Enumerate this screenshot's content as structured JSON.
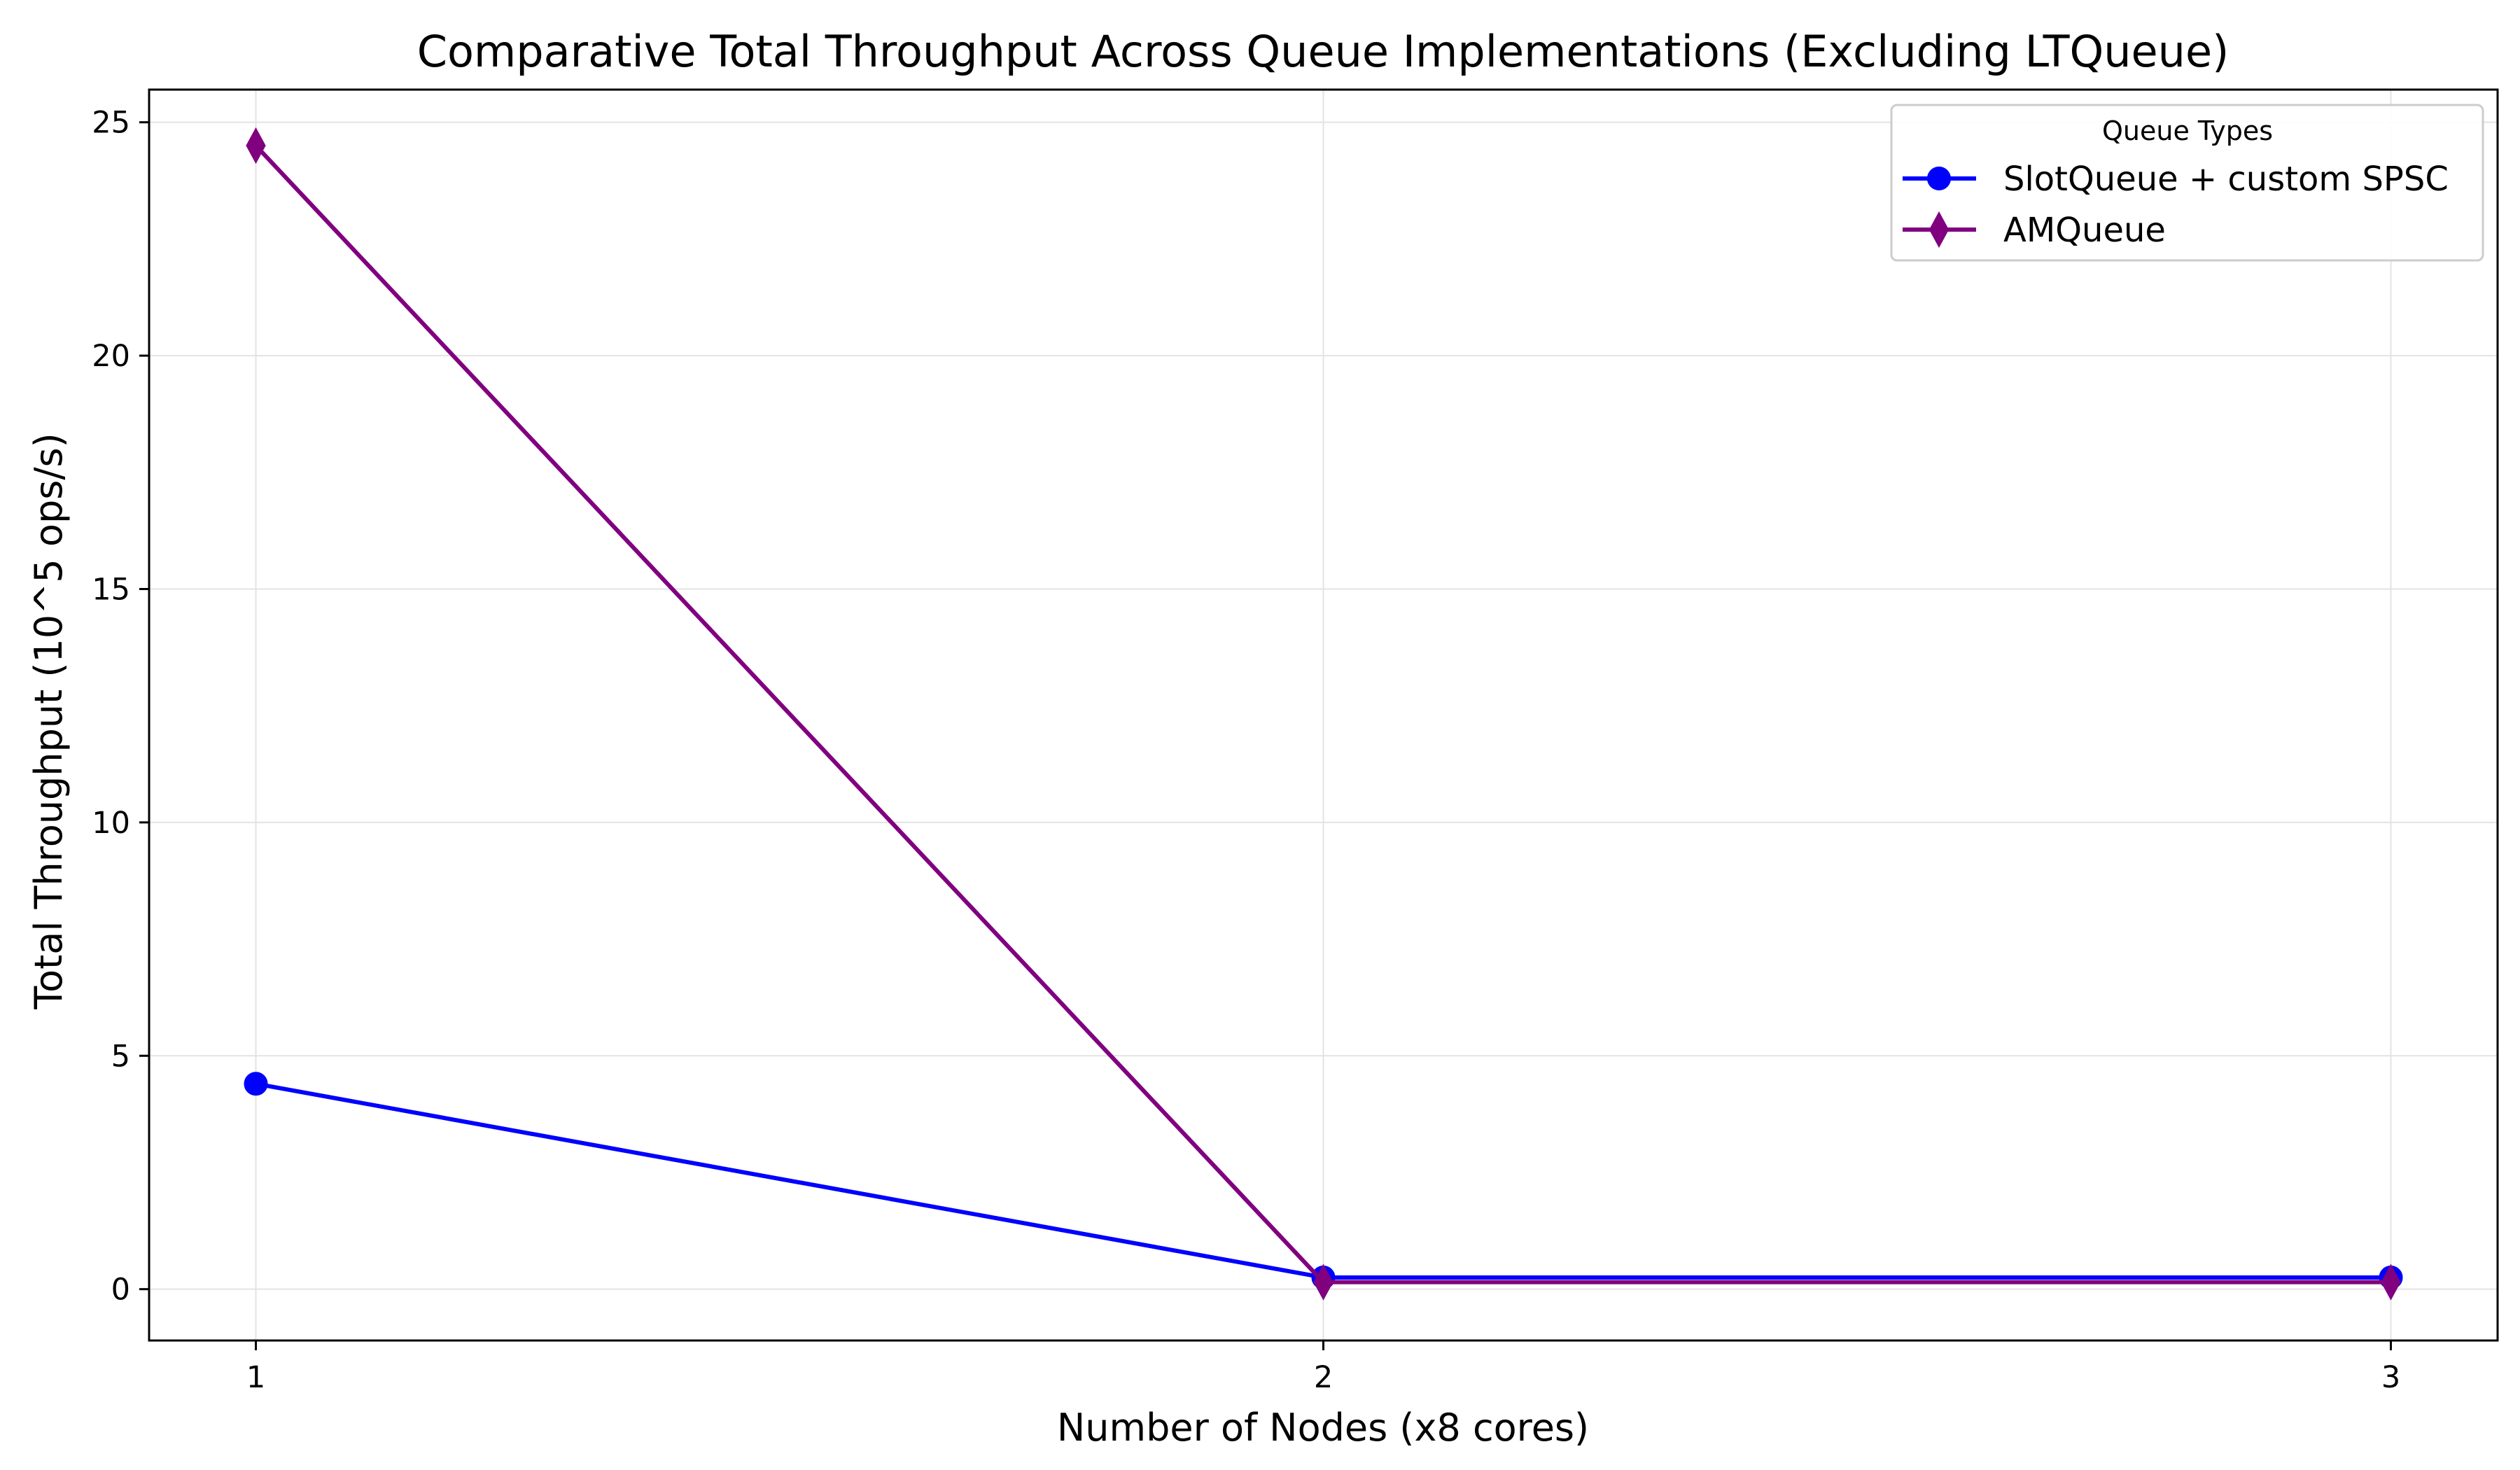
{
  "chart_data": {
    "type": "line",
    "title": "Comparative Total Throughput Across Queue Implementations (Excluding LTQueue)",
    "xlabel": "Number of Nodes (x8 cores)",
    "ylabel": "Total Throughput (10^5 ops/s)",
    "x": [
      1,
      2,
      3
    ],
    "x_tick_labels": [
      "1",
      "2",
      "3"
    ],
    "y_ticks": [
      0,
      5,
      10,
      15,
      20,
      25
    ],
    "y_tick_labels": [
      "0",
      "5",
      "10",
      "15",
      "20",
      "25"
    ],
    "xlim": [
      0.9,
      3.1
    ],
    "ylim": [
      -1.1,
      25.7
    ],
    "grid": true,
    "legend": {
      "title": "Queue Types",
      "placement": "top-right"
    },
    "series": [
      {
        "name": "SlotQueue + custom SPSC",
        "values": [
          4.4,
          0.25,
          0.25
        ],
        "color": "#0000ff",
        "marker": "circle"
      },
      {
        "name": "AMQueue",
        "values": [
          24.5,
          0.15,
          0.15
        ],
        "color": "#800080",
        "marker": "thin-diamond"
      }
    ]
  }
}
